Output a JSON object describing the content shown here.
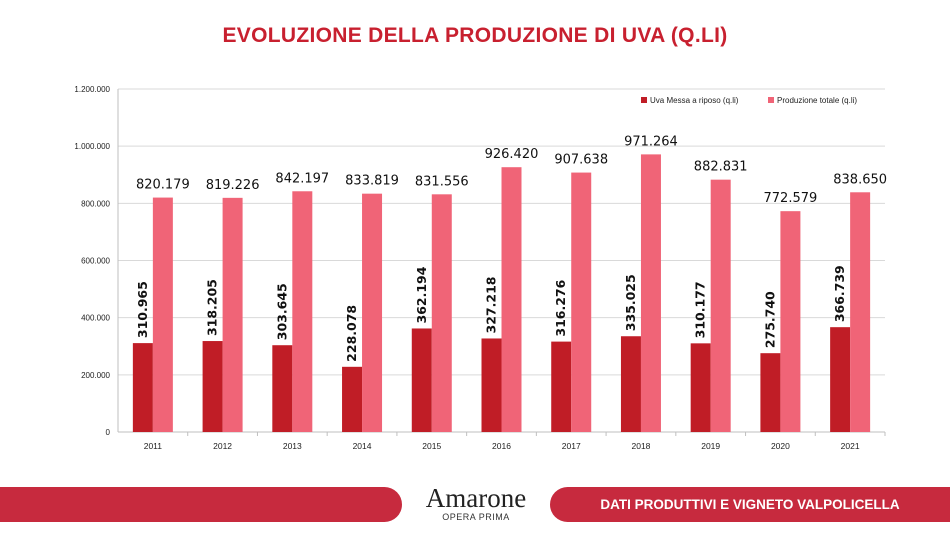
{
  "title": "EVOLUZIONE DELLA PRODUZIONE DI UVA (Q.LI)",
  "footer": {
    "logo_main": "Amarone",
    "logo_sub": "OPERA PRIMA",
    "section": "DATI PRODUTTIVI E VIGNETO VALPOLICELLA"
  },
  "chart_data": {
    "type": "bar",
    "title": "EVOLUZIONE DELLA PRODUZIONE DI UVA (Q.LI)",
    "categories": [
      "2011",
      "2012",
      "2013",
      "2014",
      "2015",
      "2016",
      "2017",
      "2018",
      "2019",
      "2020",
      "2021"
    ],
    "series": [
      {
        "name": "Uva Messa a riposo (q.li)",
        "color": "#c01d26",
        "values": [
          310965,
          318205,
          303645,
          228078,
          362194,
          327218,
          316276,
          335025,
          310177,
          275740,
          366739
        ],
        "labels": [
          "310.965",
          "318.205",
          "303.645",
          "228.078",
          "362.194",
          "327.218",
          "316.276",
          "335.025",
          "310.177",
          "275.740",
          "366.739"
        ]
      },
      {
        "name": "Produzione totale (q.li)",
        "color": "#f06477",
        "values": [
          820179,
          819226,
          842197,
          833819,
          831556,
          926420,
          907638,
          971264,
          882831,
          772579,
          838650
        ],
        "labels": [
          "820.179",
          "819.226",
          "842.197",
          "833.819",
          "831.556",
          "926.420",
          "907.638",
          "971.264",
          "882.831",
          "772.579",
          "838.650"
        ]
      }
    ],
    "ylim": [
      0,
      1200000
    ],
    "yticks": [
      0,
      200000,
      400000,
      600000,
      800000,
      1000000,
      1200000
    ],
    "ytick_labels": [
      "0",
      "200.000",
      "400.000",
      "600.000",
      "800.000",
      "1.000.000",
      "1.200.000"
    ],
    "grid": true,
    "legend": "top-right"
  }
}
